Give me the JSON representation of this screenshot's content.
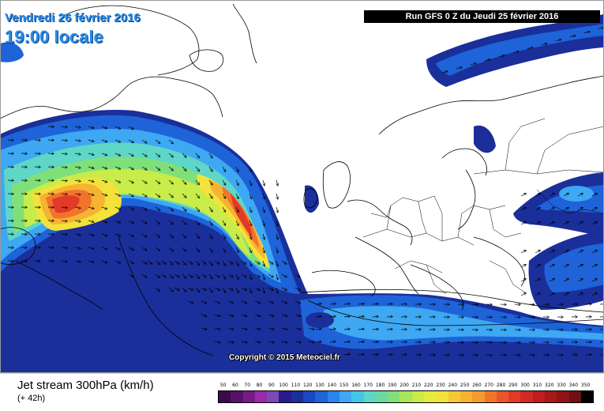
{
  "header": {
    "date_label": "Vendredi 26 février 2016",
    "time_label": "19:00 locale",
    "run_label": "Run GFS 0 Z du Jeudi 25 février 2016"
  },
  "map": {
    "copyright": "Copyright © 2015 Meteociel.fr",
    "jet_colors": [
      "#1a2f9a",
      "#1e63d8",
      "#3ea8f2",
      "#5ed6c8",
      "#7fe07a",
      "#c8ec4a",
      "#f2e23a",
      "#f6b332",
      "#f2742c",
      "#e23a26"
    ]
  },
  "legend": {
    "product": "Jet stream 300hPa (km/h)",
    "lead_time": "(+ 42h)",
    "ticks": [
      "50",
      "60",
      "70",
      "80",
      "90",
      "100",
      "110",
      "120",
      "130",
      "140",
      "150",
      "160",
      "170",
      "180",
      "190",
      "200",
      "210",
      "220",
      "230",
      "240",
      "250",
      "260",
      "270",
      "280",
      "290",
      "300",
      "310",
      "320",
      "330",
      "340",
      "350"
    ],
    "colors": [
      "#3a0a4a",
      "#57126a",
      "#7a1a88",
      "#9a2aa8",
      "#7a4ab8",
      "#2a1a8a",
      "#1a2f9a",
      "#1a48c0",
      "#1e63d8",
      "#2a84ea",
      "#3ea8f2",
      "#45c4ee",
      "#5ed6c8",
      "#6ad8a0",
      "#7fe07a",
      "#a4e85c",
      "#c8ec4a",
      "#e4ec3e",
      "#f2e23a",
      "#f6c834",
      "#f6b332",
      "#f49a2e",
      "#f2742c",
      "#ea5628",
      "#e23a26",
      "#d22a22",
      "#c01e1e",
      "#a8181a",
      "#901416",
      "#701012",
      "#000000"
    ]
  }
}
